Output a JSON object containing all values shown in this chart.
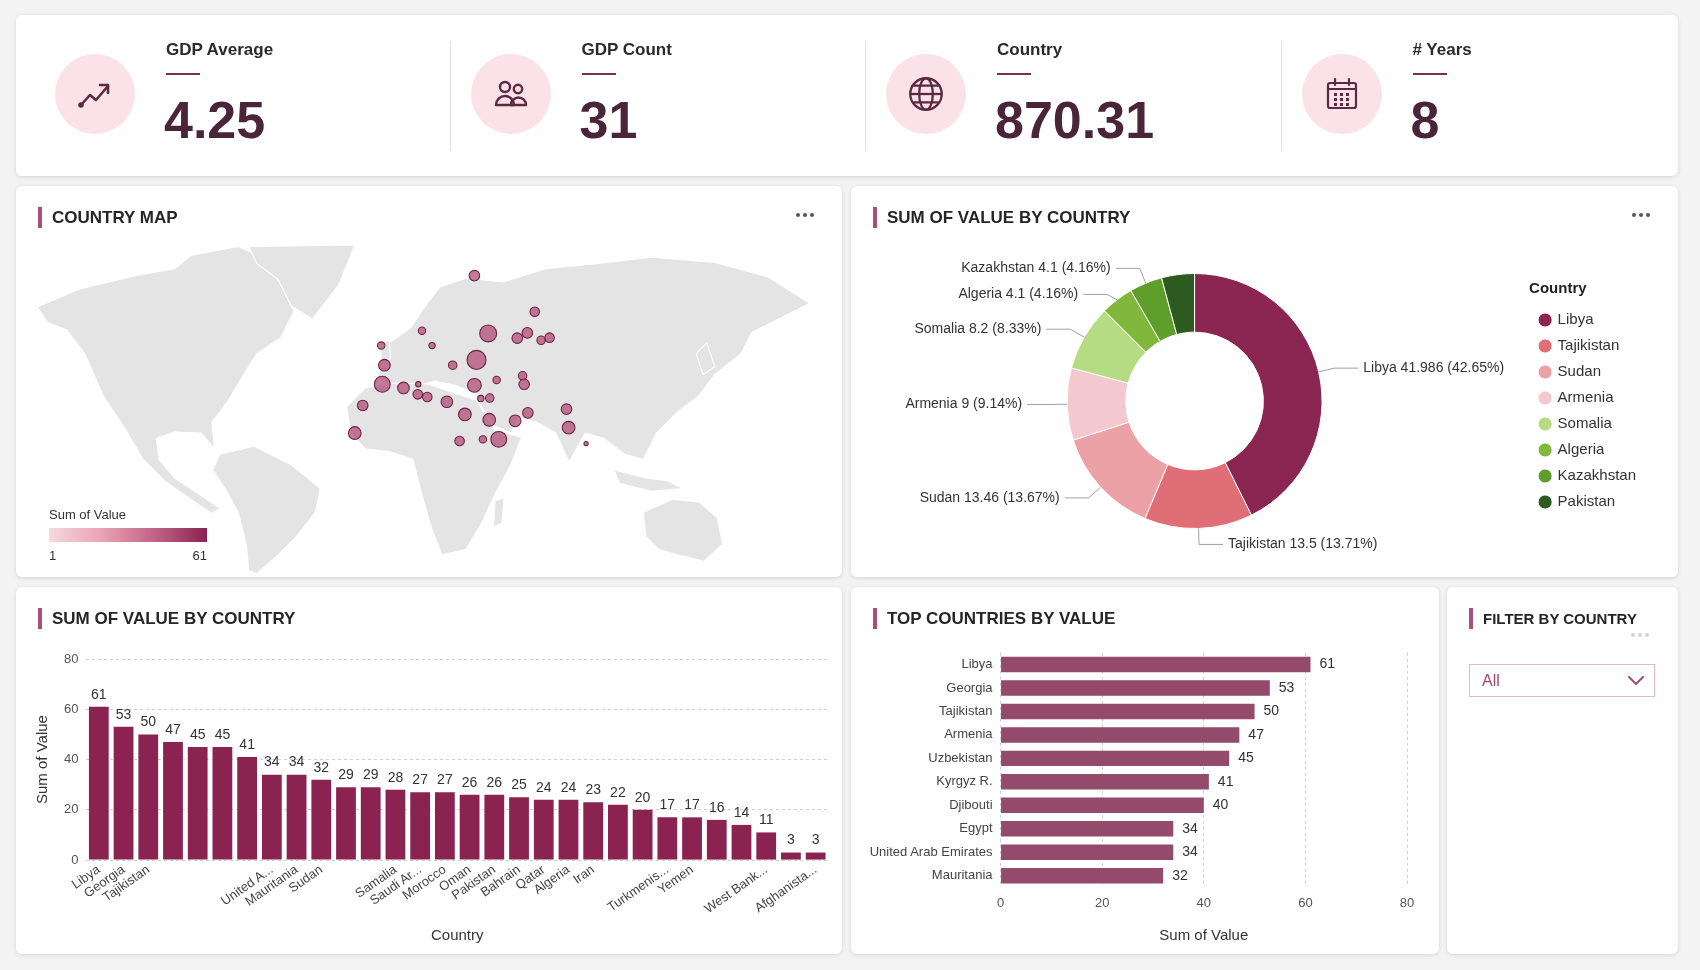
{
  "chart_data": [
    {
      "type": "other",
      "categories": [
        "GDP Average",
        "GDP Count",
        "Country",
        "# Years"
      ],
      "values": [
        4.25,
        31,
        870.31,
        8
      ],
      "data_labels": true
    },
    {
      "type": "other",
      "title": "COUNTRY MAP",
      "clabel": "Sum of Value",
      "annotations": [
        "1",
        "61"
      ]
    },
    {
      "type": "donut",
      "title": "SUM OF VALUE BY COUNTRY",
      "legend_title": "Country",
      "legend": "right",
      "categories": [
        "Libya",
        "Tajikistan",
        "Sudan",
        "Armenia",
        "Somalia",
        "Algeria",
        "Kazakhstan",
        "Pakistan"
      ],
      "values": [
        41.986,
        13.5,
        13.46,
        9,
        8.2,
        4.1,
        4.1,
        4.1
      ],
      "colors": [
        "#8b2552",
        "#e06e76",
        "#eba1a6",
        "#f3c9cf",
        "#b5dc82",
        "#7fb83a",
        "#5f9e2a",
        "#2d5a1f"
      ],
      "value_labels": [
        "Libya 41.986 (42.65%)",
        "Tajikistan 13.5 (13.71%)",
        "Sudan 13.46 (13.67%)",
        "Armenia 9 (9.14%)",
        "Somalia 8.2 (8.33%)",
        "Algeria 4.1 (4.16%)",
        "Kazakhstan 4.1 (4.16%)",
        null
      ]
    },
    {
      "type": "bar",
      "title": "SUM OF VALUE BY COUNTRY",
      "xlabel": "Country",
      "ylabel": "Sum of Value",
      "categories": [
        "Libya",
        "Georgia",
        "Tajikistan",
        null,
        null,
        null,
        null,
        "United A...",
        "Mauritania",
        "Sudan",
        null,
        null,
        "Samalia",
        "Saudi Ar...",
        "Morocco",
        "Oman",
        "Pakistan",
        "Bahrain",
        "Qatar",
        "Algeria",
        "Iran",
        null,
        null,
        "Turkmenis...",
        "Yemen",
        null,
        null,
        "West Bank...",
        null,
        "Afghanista..."
      ],
      "values": [
        61,
        53,
        50,
        47,
        45,
        45,
        41,
        34,
        34,
        32,
        29,
        29,
        28,
        27,
        27,
        26,
        26,
        25,
        24,
        24,
        23,
        22,
        20,
        17,
        17,
        16,
        14,
        11,
        3,
        3
      ],
      "color": "#8b2351",
      "ylim": [
        0,
        80
      ],
      "yticks": [
        0,
        20,
        40,
        60,
        80
      ],
      "grid": "y",
      "data_labels": true
    },
    {
      "type": "bar",
      "orientation": "horizontal",
      "title": "TOP COUNTRIES BY VALUE",
      "xlabel": "Sum of Value",
      "categories": [
        "Libya",
        "Georgia",
        "Tajikistan",
        "Armenia",
        "Uzbekistan",
        "Kyrgyz R.",
        "Djibouti",
        "Egypt",
        "United Arab Emirates",
        "Mauritania"
      ],
      "values": [
        61,
        53,
        50,
        47,
        45,
        41,
        40,
        34,
        34,
        32
      ],
      "color": "#944a6a",
      "xlim": [
        0,
        80
      ],
      "xticks": [
        0,
        20,
        40,
        60,
        80
      ],
      "grid": "x",
      "data_labels": true
    },
    {
      "type": "other",
      "title": "FILTER BY COUNTRY",
      "annotations": [
        "All"
      ]
    }
  ]
}
